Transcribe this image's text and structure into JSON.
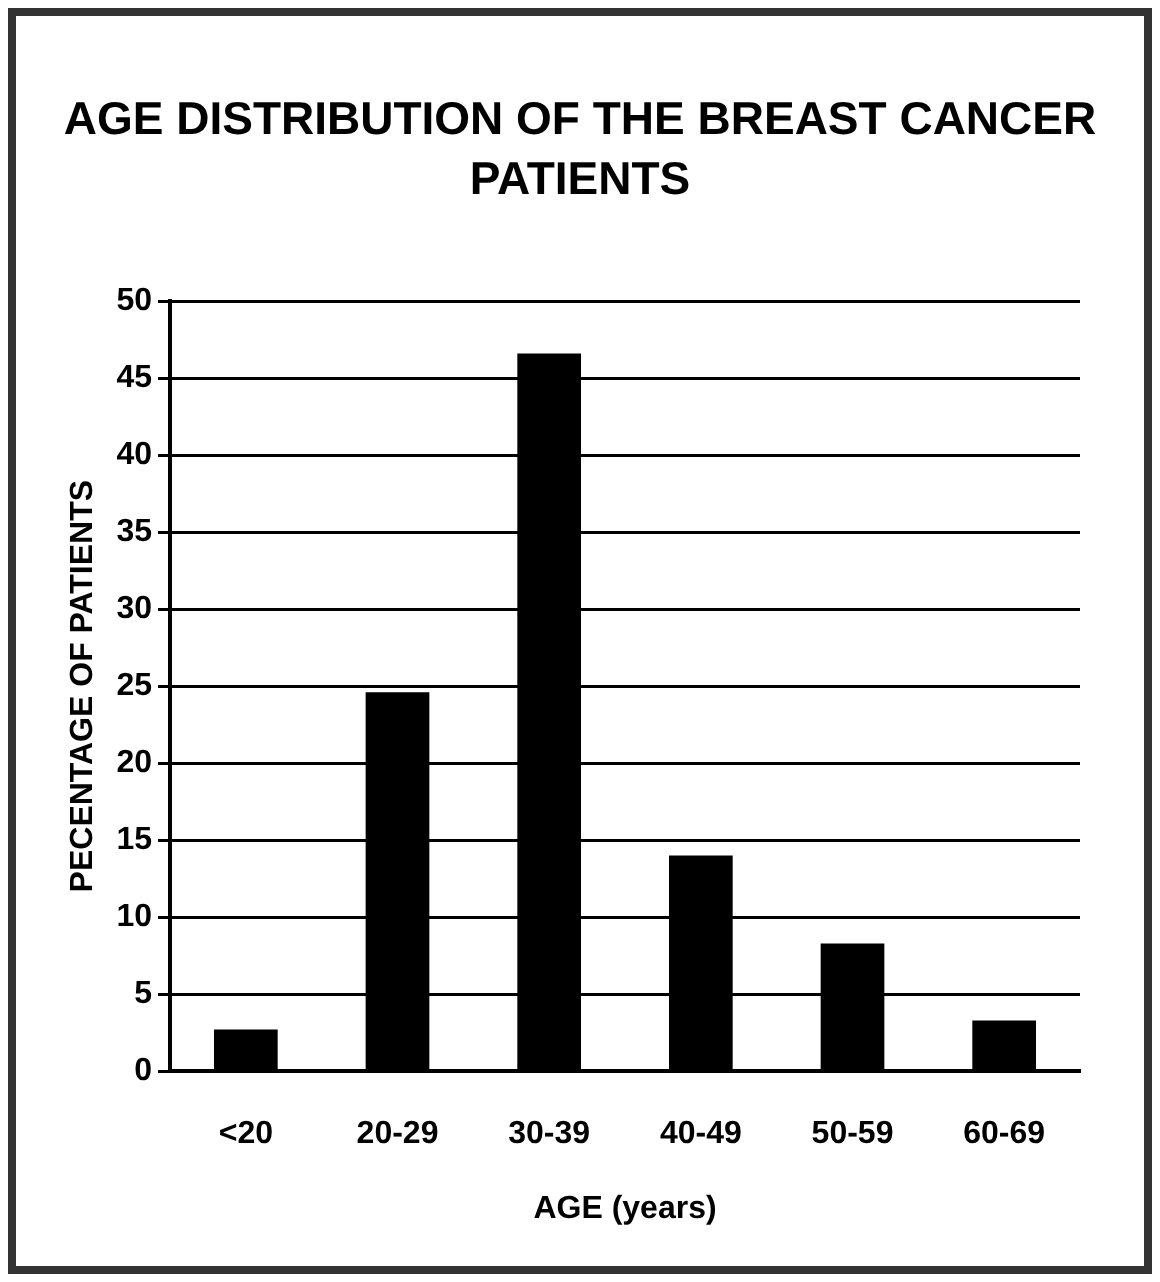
{
  "chart_data": {
    "type": "bar",
    "title": "AGE DISTRIBUTION OF THE BREAST CANCER PATIENTS",
    "xlabel": "AGE (years)",
    "ylabel": "PECENTAGE OF PATIENTS",
    "categories": [
      "<20",
      "20-29",
      "30-39",
      "40-49",
      "50-59",
      "60-69"
    ],
    "values": [
      2.7,
      24.6,
      46.6,
      14.0,
      8.3,
      3.3
    ],
    "color": "#000000",
    "ylim": [
      0,
      50
    ],
    "yticks": [
      0,
      5,
      10,
      15,
      20,
      25,
      30,
      35,
      40,
      45,
      50
    ],
    "grid": "y",
    "legend": false
  }
}
